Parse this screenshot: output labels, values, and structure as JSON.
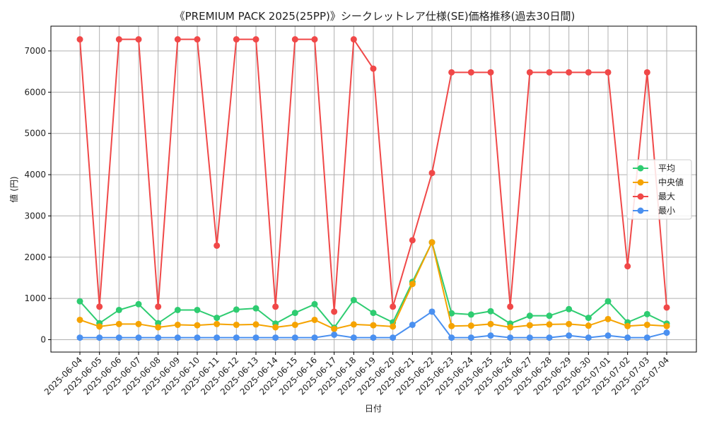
{
  "chart_data": {
    "type": "line",
    "title": "《PREMIUM PACK 2025(25PP)》シークレットレア仕様(SE)価格推移(過去30日間)",
    "xlabel": "日付",
    "ylabel": "値 (円)",
    "ylim": [
      -300,
      7600
    ],
    "yticks": [
      0,
      1000,
      2000,
      3000,
      4000,
      5000,
      6000,
      7000
    ],
    "grid": true,
    "legend_position": "right",
    "x": [
      "2025-06-04",
      "2025-06-05",
      "2025-06-06",
      "2025-06-07",
      "2025-06-08",
      "2025-06-09",
      "2025-06-10",
      "2025-06-11",
      "2025-06-12",
      "2025-06-13",
      "2025-06-14",
      "2025-06-15",
      "2025-06-16",
      "2025-06-17",
      "2025-06-18",
      "2025-06-19",
      "2025-06-20",
      "2025-06-21",
      "2025-06-22",
      "2025-06-23",
      "2025-06-24",
      "2025-06-25",
      "2025-06-26",
      "2025-06-27",
      "2025-06-28",
      "2025-06-29",
      "2025-06-30",
      "2025-07-01",
      "2025-07-02",
      "2025-07-03",
      "2025-07-04"
    ],
    "series": [
      {
        "name": "平均",
        "color": "#2ecc71",
        "values": [
          930,
          400,
          720,
          860,
          400,
          720,
          720,
          530,
          730,
          760,
          390,
          650,
          860,
          290,
          960,
          650,
          420,
          1400,
          2360,
          640,
          610,
          690,
          390,
          580,
          580,
          740,
          530,
          930,
          420,
          620,
          390
        ]
      },
      {
        "name": "中央値",
        "color": "#f5a300",
        "values": [
          480,
          320,
          380,
          380,
          300,
          360,
          350,
          380,
          360,
          370,
          300,
          360,
          480,
          260,
          370,
          350,
          320,
          1350,
          2360,
          330,
          340,
          380,
          300,
          350,
          370,
          380,
          340,
          500,
          330,
          360,
          330
        ]
      },
      {
        "name": "最大",
        "color": "#f04848",
        "values": [
          7280,
          800,
          7280,
          7280,
          800,
          7280,
          7280,
          2280,
          7280,
          7280,
          800,
          7280,
          7280,
          680,
          7280,
          6570,
          800,
          2410,
          4040,
          6480,
          6480,
          6480,
          800,
          6480,
          6480,
          6480,
          6480,
          6480,
          1780,
          6480,
          780
        ]
      },
      {
        "name": "最小",
        "color": "#4a90f0",
        "values": [
          50,
          50,
          50,
          50,
          50,
          50,
          50,
          50,
          50,
          50,
          50,
          50,
          50,
          120,
          50,
          50,
          50,
          360,
          680,
          50,
          50,
          100,
          50,
          50,
          50,
          100,
          50,
          100,
          50,
          50,
          170
        ]
      }
    ]
  }
}
